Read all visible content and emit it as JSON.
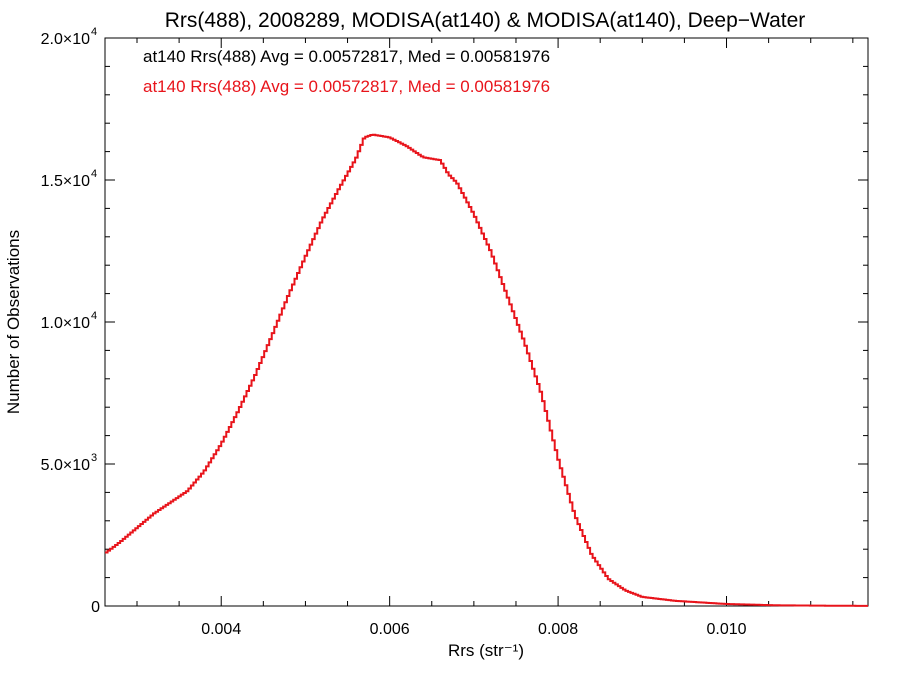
{
  "chart_data": {
    "type": "histogram",
    "title": "Rrs(488), 2008289, MODISA(at140) & MODISA(at140), Deep−Water",
    "xlabel": "Rrs (str⁻¹)",
    "ylabel": "Number of Observations",
    "xlim": [
      0.00262,
      0.01168
    ],
    "ylim": [
      0,
      20000
    ],
    "x_ticks": [
      0.004,
      0.006,
      0.008,
      0.01
    ],
    "x_tick_labels": [
      "0.004",
      "0.006",
      "0.008",
      "0.010"
    ],
    "y_ticks": [
      0,
      5000,
      10000,
      15000,
      20000
    ],
    "y_tick_labels": [
      {
        "mantissa": "0",
        "exponent": ""
      },
      {
        "mantissa": "5.0×10",
        "exponent": "3"
      },
      {
        "mantissa": "1.0×10",
        "exponent": "4"
      },
      {
        "mantissa": "1.5×10",
        "exponent": "4"
      },
      {
        "mantissa": "2.0×10",
        "exponent": "4"
      }
    ],
    "grid": false,
    "annotations": [
      {
        "text": "at140 Rrs(488) Avg = 0.00572817, Med = 0.00581976",
        "color": "#000000"
      },
      {
        "text": "at140 Rrs(488) Avg = 0.00572817, Med = 0.00581976",
        "color": "#e8141b"
      }
    ],
    "series": [
      {
        "color": "#e8141b",
        "style": "step",
        "points": [
          [
            0.00262,
            1850
          ],
          [
            0.0028,
            2250
          ],
          [
            0.003,
            2750
          ],
          [
            0.0032,
            3250
          ],
          [
            0.0034,
            3650
          ],
          [
            0.0036,
            4050
          ],
          [
            0.0038,
            4750
          ],
          [
            0.004,
            5700
          ],
          [
            0.0042,
            6850
          ],
          [
            0.0044,
            8100
          ],
          [
            0.0046,
            9500
          ],
          [
            0.0048,
            10950
          ],
          [
            0.005,
            12300
          ],
          [
            0.0052,
            13600
          ],
          [
            0.0054,
            14700
          ],
          [
            0.0056,
            15750
          ],
          [
            0.0057,
            16500
          ],
          [
            0.0058,
            16600
          ],
          [
            0.006,
            16500
          ],
          [
            0.0062,
            16200
          ],
          [
            0.0064,
            15800
          ],
          [
            0.0066,
            15700
          ],
          [
            0.0067,
            15200
          ],
          [
            0.0068,
            14900
          ],
          [
            0.007,
            13800
          ],
          [
            0.0072,
            12500
          ],
          [
            0.0074,
            10900
          ],
          [
            0.0076,
            9300
          ],
          [
            0.0078,
            7500
          ],
          [
            0.008,
            5200
          ],
          [
            0.0082,
            3200
          ],
          [
            0.0084,
            1800
          ],
          [
            0.0086,
            950
          ],
          [
            0.0088,
            550
          ],
          [
            0.009,
            320
          ],
          [
            0.0094,
            180
          ],
          [
            0.01,
            70
          ],
          [
            0.0106,
            25
          ],
          [
            0.0112,
            10
          ],
          [
            0.01168,
            5
          ]
        ]
      }
    ]
  }
}
